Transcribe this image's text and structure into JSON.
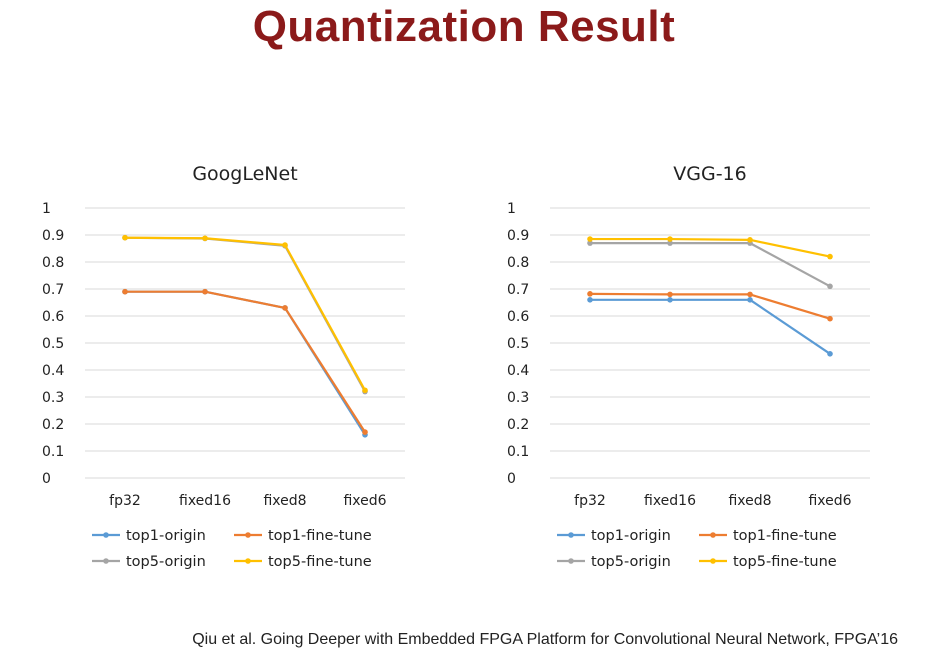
{
  "title": "Quantization Result",
  "citation": "Qiu et al.  Going Deeper with Embedded FPGA Platform for Convolutional Neural Network, FPGA’16",
  "colors": {
    "title": "#8b1a1a",
    "top1-origin": "#5b9bd5",
    "top1-fine-tune": "#ed7d31",
    "top5-origin": "#a5a5a5",
    "top5-fine-tune": "#ffc000"
  },
  "chart_data": [
    {
      "type": "line",
      "title": "GoogLeNet",
      "categories": [
        "fp32",
        "fixed16",
        "fixed8",
        "fixed6"
      ],
      "yticks": [
        "0",
        "0.1",
        "0.2",
        "0.3",
        "0.4",
        "0.5",
        "0.6",
        "0.7",
        "0.8",
        "0.9",
        "1"
      ],
      "ylim": [
        0,
        1
      ],
      "grid": true,
      "legend_position": "bottom",
      "series": [
        {
          "name": "top1-origin",
          "values": [
            0.69,
            0.69,
            0.63,
            0.16
          ]
        },
        {
          "name": "top1-fine-tune",
          "values": [
            0.69,
            0.69,
            0.63,
            0.17
          ]
        },
        {
          "name": "top5-origin",
          "values": [
            0.89,
            0.887,
            0.86,
            0.32
          ]
        },
        {
          "name": "top5-fine-tune",
          "values": [
            0.89,
            0.888,
            0.863,
            0.325
          ]
        }
      ]
    },
    {
      "type": "line",
      "title": "VGG-16",
      "categories": [
        "fp32",
        "fixed16",
        "fixed8",
        "fixed6"
      ],
      "yticks": [
        "0",
        "0.1",
        "0.2",
        "0.3",
        "0.4",
        "0.5",
        "0.6",
        "0.7",
        "0.8",
        "0.9",
        "1"
      ],
      "ylim": [
        0,
        1
      ],
      "grid": true,
      "legend_position": "bottom",
      "series": [
        {
          "name": "top1-origin",
          "values": [
            0.66,
            0.66,
            0.66,
            0.46
          ]
        },
        {
          "name": "top1-fine-tune",
          "values": [
            0.682,
            0.68,
            0.68,
            0.59
          ]
        },
        {
          "name": "top5-origin",
          "values": [
            0.87,
            0.87,
            0.87,
            0.71
          ]
        },
        {
          "name": "top5-fine-tune",
          "values": [
            0.885,
            0.885,
            0.882,
            0.82
          ]
        }
      ]
    }
  ]
}
